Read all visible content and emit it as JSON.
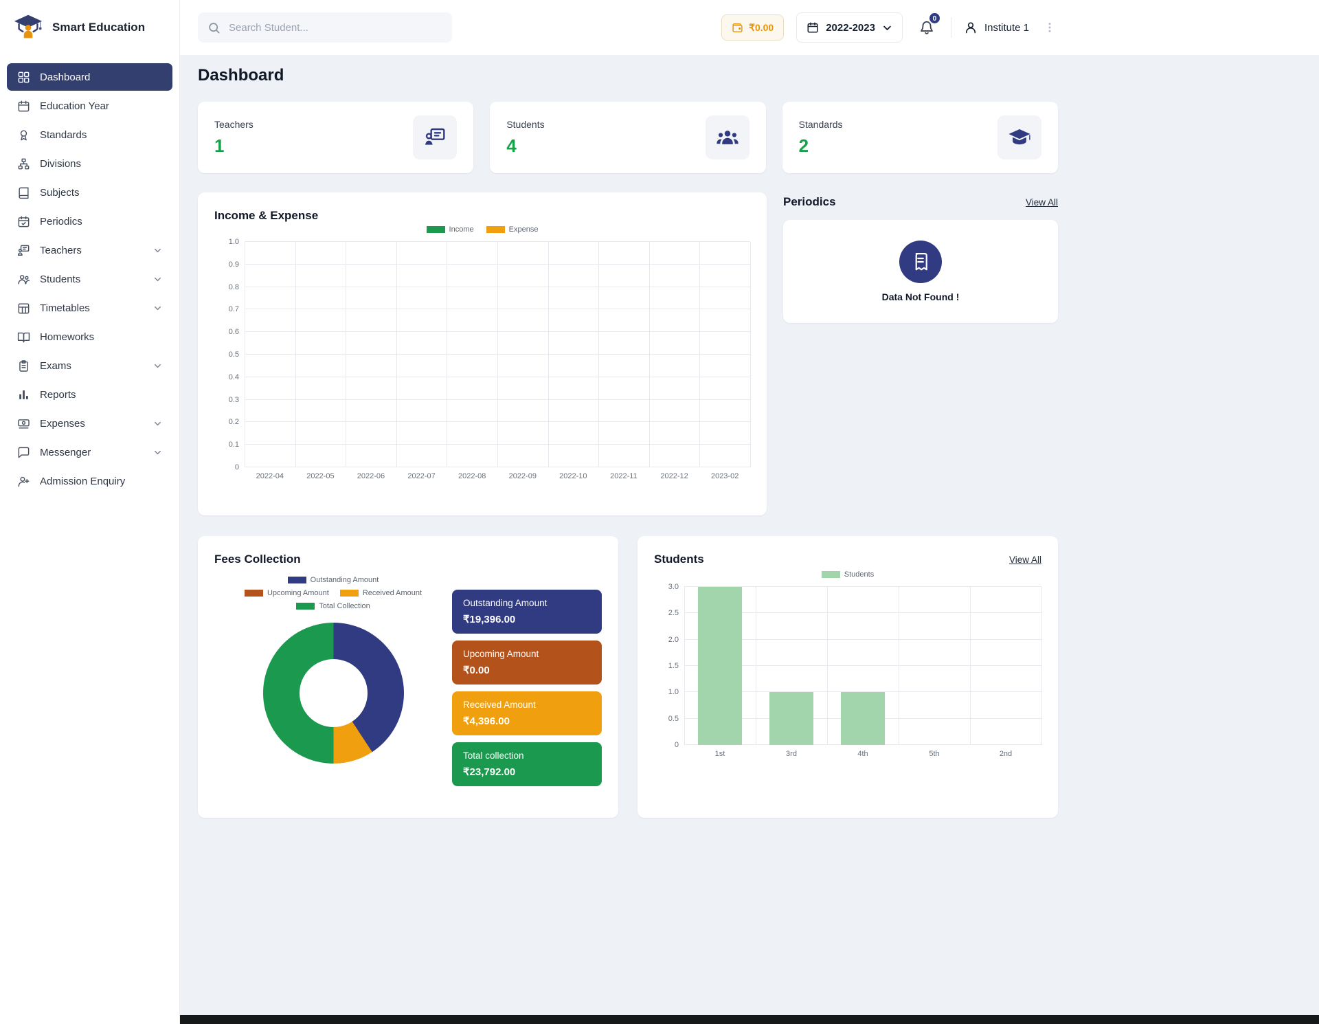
{
  "app": {
    "name": "Smart Education",
    "logo_icon": "graduation-cap-logo"
  },
  "topbar": {
    "search_placeholder": "Search Student...",
    "wallet_balance": "₹0.00",
    "academic_year": "2022-2023",
    "notification_count": "0",
    "institute_name": "Institute 1"
  },
  "sidebar": {
    "items": [
      {
        "label": "Dashboard",
        "icon": "dashboard-icon",
        "active": true,
        "expandable": false
      },
      {
        "label": "Education Year",
        "icon": "education-year-icon",
        "active": false,
        "expandable": false
      },
      {
        "label": "Standards",
        "icon": "standards-icon",
        "active": false,
        "expandable": false
      },
      {
        "label": "Divisions",
        "icon": "divisions-icon",
        "active": false,
        "expandable": false
      },
      {
        "label": "Subjects",
        "icon": "subjects-icon",
        "active": false,
        "expandable": false
      },
      {
        "label": "Periodics",
        "icon": "periodics-icon",
        "active": false,
        "expandable": false
      },
      {
        "label": "Teachers",
        "icon": "teachers-icon",
        "active": false,
        "expandable": true
      },
      {
        "label": "Students",
        "icon": "students-icon",
        "active": false,
        "expandable": true
      },
      {
        "label": "Timetables",
        "icon": "timetables-icon",
        "active": false,
        "expandable": true
      },
      {
        "label": "Homeworks",
        "icon": "homeworks-icon",
        "active": false,
        "expandable": false
      },
      {
        "label": "Exams",
        "icon": "exams-icon",
        "active": false,
        "expandable": true
      },
      {
        "label": "Reports",
        "icon": "reports-icon",
        "active": false,
        "expandable": false
      },
      {
        "label": "Expenses",
        "icon": "expenses-icon",
        "active": false,
        "expandable": true
      },
      {
        "label": "Messenger",
        "icon": "messenger-icon",
        "active": false,
        "expandable": true
      },
      {
        "label": "Admission Enquiry",
        "icon": "admission-enquiry-icon",
        "active": false,
        "expandable": false
      }
    ]
  },
  "page": {
    "title": "Dashboard"
  },
  "stats": [
    {
      "label": "Teachers",
      "value": "1",
      "icon": "teacher-board-icon"
    },
    {
      "label": "Students",
      "value": "4",
      "icon": "students-group-icon"
    },
    {
      "label": "Standards",
      "value": "2",
      "icon": "graduation-cap-icon"
    }
  ],
  "income_expense_card": {
    "title": "Income & Expense"
  },
  "periodics_card": {
    "title": "Periodics",
    "view_all": "View All",
    "empty_text": "Data Not Found !",
    "empty_icon": "scroll-icon"
  },
  "fees_card": {
    "title": "Fees Collection",
    "legend_rows": [
      [
        {
          "label": "Outstanding Amount",
          "color": "#313b82"
        }
      ],
      [
        {
          "label": "Upcoming Amount",
          "color": "#b4521b"
        },
        {
          "label": "Received Amount",
          "color": "#f0a00e"
        }
      ],
      [
        {
          "label": "Total Collection",
          "color": "#1b9a4f"
        }
      ]
    ],
    "blocks": [
      {
        "label": "Outstanding Amount",
        "value": "₹19,396.00",
        "color": "#313b82"
      },
      {
        "label": "Upcoming Amount",
        "value": "₹0.00",
        "color": "#b4521b"
      },
      {
        "label": "Received Amount",
        "value": "₹4,396.00",
        "color": "#f0a00e"
      },
      {
        "label": "Total collection",
        "value": "₹23,792.00",
        "color": "#1b9a4f"
      }
    ]
  },
  "students_card": {
    "title": "Students",
    "view_all": "View All"
  },
  "chart_data": [
    {
      "id": "income_expense",
      "type": "line",
      "title": "Income & Expense",
      "x": [
        "2022-04",
        "2022-05",
        "2022-06",
        "2022-07",
        "2022-08",
        "2022-09",
        "2022-10",
        "2022-11",
        "2022-12",
        "2023-02"
      ],
      "series": [
        {
          "name": "Income",
          "color": "#1b9a4f",
          "values": []
        },
        {
          "name": "Expense",
          "color": "#f0a00e",
          "values": []
        }
      ],
      "ylim": [
        0,
        1.0
      ],
      "yticks": [
        0,
        0.1,
        0.2,
        0.3,
        0.4,
        0.5,
        0.6,
        0.7,
        0.8,
        0.9,
        1.0
      ],
      "grid": true,
      "legend_position": "top-center",
      "note": "no data plotted - empty grid"
    },
    {
      "id": "fees_donut",
      "type": "pie",
      "title": "Fees Collection",
      "slices": [
        {
          "label": "Outstanding Amount",
          "value": 19396,
          "color": "#313b82"
        },
        {
          "label": "Upcoming Amount",
          "value": 0,
          "color": "#b4521b"
        },
        {
          "label": "Received Amount",
          "value": 4396,
          "color": "#f0a00e"
        },
        {
          "label": "Total Collection",
          "value": 23792,
          "color": "#1b9a4f"
        }
      ],
      "donut": true
    },
    {
      "id": "students",
      "type": "bar",
      "title": "Students",
      "series_name": "Students",
      "categories": [
        "1st",
        "3rd",
        "4th",
        "5th",
        "2nd"
      ],
      "values": [
        3,
        1,
        1,
        0,
        0
      ],
      "color": "#a3d5ad",
      "ylim": [
        0,
        3
      ],
      "yticks": [
        0,
        0.5,
        1.0,
        1.5,
        2.0,
        2.5,
        3.0
      ],
      "grid": true,
      "legend_position": "top-center"
    }
  ]
}
